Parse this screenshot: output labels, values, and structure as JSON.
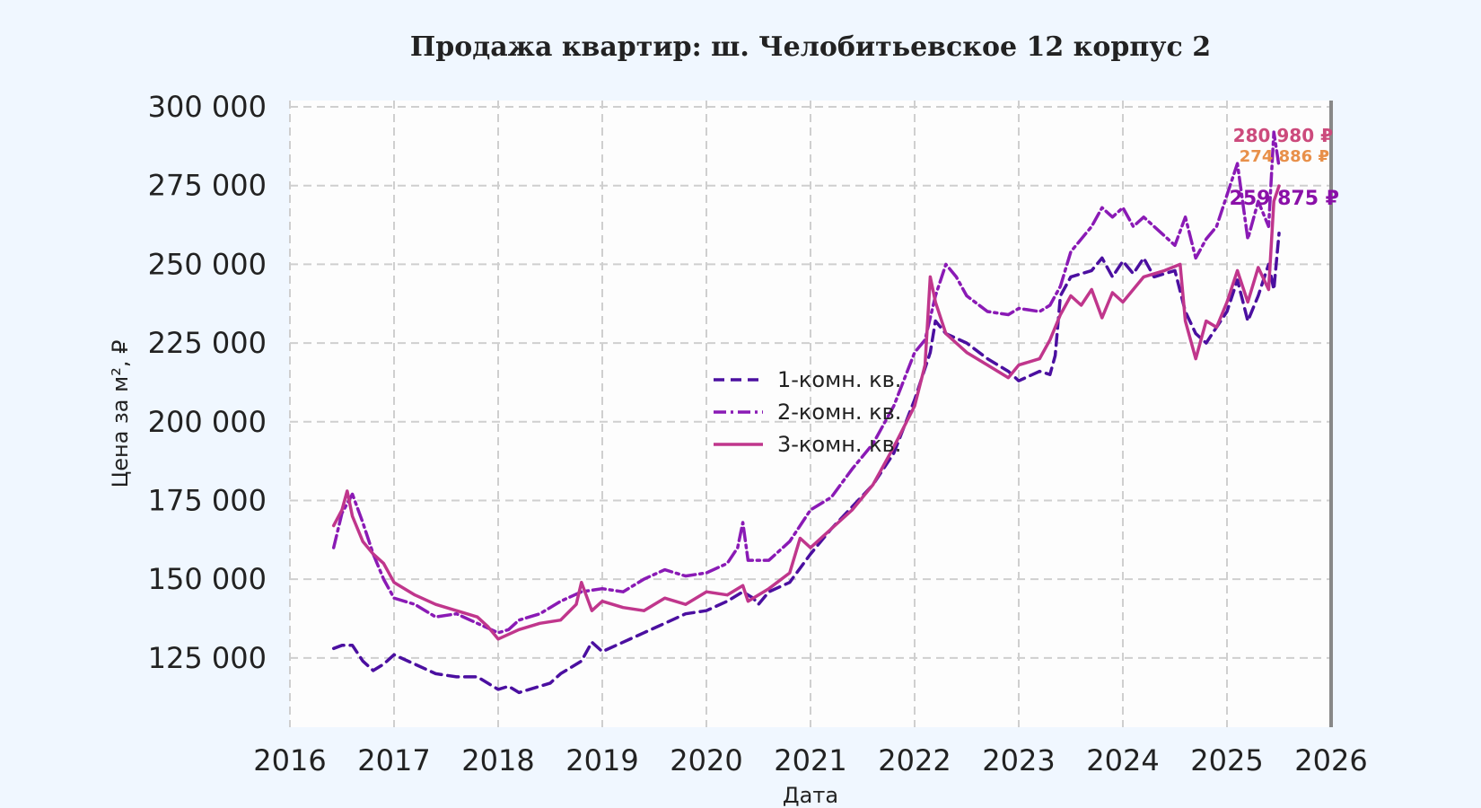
{
  "chart_data": {
    "type": "line",
    "title": "Продажа квартир: ш. Челобитьевское 12 корпус 2",
    "xlabel": "Дата",
    "ylabel": "Цена за м², ₽",
    "xlim": [
      2016.0,
      2026.0
    ],
    "ylim": [
      103000,
      302000
    ],
    "x_ticks": [
      "2016",
      "2017",
      "2018",
      "2019",
      "2020",
      "2021",
      "2022",
      "2023",
      "2024",
      "2025",
      "2026"
    ],
    "y_ticks": [
      "125 000",
      "150 000",
      "175 000",
      "200 000",
      "225 000",
      "250 000",
      "275 000",
      "300 000"
    ],
    "grid": true,
    "legend_position": "center",
    "end_labels": [
      "280 980 ₽",
      "274 886 ₽",
      "259 875 ₽"
    ],
    "series": [
      {
        "name": "1-комн. кв.",
        "color": "#4b0fa0",
        "dash": "dashed",
        "x": [
          2016.42,
          2016.5,
          2016.6,
          2016.7,
          2016.8,
          2016.9,
          2017.0,
          2017.2,
          2017.4,
          2017.6,
          2017.8,
          2017.9,
          2018.0,
          2018.1,
          2018.2,
          2018.4,
          2018.5,
          2018.6,
          2018.8,
          2018.9,
          2019.0,
          2019.2,
          2019.4,
          2019.6,
          2019.8,
          2020.0,
          2020.2,
          2020.35,
          2020.45,
          2020.5,
          2020.6,
          2020.8,
          2021.0,
          2021.2,
          2021.4,
          2021.6,
          2021.8,
          2022.0,
          2022.15,
          2022.2,
          2022.3,
          2022.5,
          2022.7,
          2022.9,
          2023.0,
          2023.2,
          2023.3,
          2023.35,
          2023.4,
          2023.5,
          2023.7,
          2023.8,
          2023.9,
          2024.0,
          2024.1,
          2024.2,
          2024.3,
          2024.5,
          2024.6,
          2024.7,
          2024.8,
          2024.9,
          2025.0,
          2025.1,
          2025.2,
          2025.3,
          2025.4,
          2025.45,
          2025.5
        ],
        "y": [
          128000,
          129000,
          129000,
          124000,
          121000,
          123000,
          126000,
          123000,
          120000,
          119000,
          119000,
          117000,
          115000,
          116000,
          114000,
          116000,
          117000,
          120000,
          124000,
          130000,
          127000,
          130000,
          133000,
          136000,
          139000,
          140000,
          143000,
          146000,
          144000,
          142000,
          146000,
          149000,
          158000,
          166000,
          173000,
          180000,
          190000,
          207000,
          222000,
          232000,
          228000,
          225000,
          220000,
          216000,
          213000,
          216000,
          215000,
          221000,
          240000,
          246000,
          248000,
          252000,
          246000,
          251000,
          247000,
          252000,
          246000,
          248000,
          235000,
          228000,
          225000,
          230000,
          235000,
          245000,
          232000,
          240000,
          250000,
          242000,
          259875
        ]
      },
      {
        "name": "2-комн. кв.",
        "color": "#8a1ab5",
        "dash": "dashdot",
        "x": [
          2016.42,
          2016.5,
          2016.6,
          2016.7,
          2016.8,
          2016.9,
          2017.0,
          2017.2,
          2017.4,
          2017.6,
          2017.8,
          2018.0,
          2018.1,
          2018.2,
          2018.4,
          2018.6,
          2018.8,
          2019.0,
          2019.2,
          2019.4,
          2019.6,
          2019.8,
          2020.0,
          2020.2,
          2020.3,
          2020.35,
          2020.4,
          2020.6,
          2020.8,
          2021.0,
          2021.2,
          2021.4,
          2021.6,
          2021.8,
          2022.0,
          2022.1,
          2022.2,
          2022.3,
          2022.4,
          2022.5,
          2022.7,
          2022.9,
          2023.0,
          2023.2,
          2023.3,
          2023.4,
          2023.5,
          2023.6,
          2023.7,
          2023.8,
          2023.9,
          2024.0,
          2024.1,
          2024.2,
          2024.3,
          2024.5,
          2024.6,
          2024.7,
          2024.8,
          2024.9,
          2025.0,
          2025.1,
          2025.2,
          2025.3,
          2025.4,
          2025.45,
          2025.5
        ],
        "y": [
          160000,
          171000,
          177000,
          168000,
          158000,
          150000,
          144000,
          142000,
          138000,
          139000,
          136000,
          133000,
          134000,
          137000,
          139000,
          143000,
          146000,
          147000,
          146000,
          150000,
          153000,
          151000,
          152000,
          155000,
          160000,
          168000,
          156000,
          156000,
          162000,
          172000,
          176000,
          185000,
          193000,
          205000,
          222000,
          226000,
          240000,
          250000,
          246000,
          240000,
          235000,
          234000,
          236000,
          235000,
          237000,
          243000,
          254000,
          258000,
          262000,
          268000,
          265000,
          268000,
          262000,
          265000,
          262000,
          256000,
          265000,
          252000,
          258000,
          262000,
          272000,
          282000,
          258000,
          270000,
          262000,
          292000,
          280980
        ]
      },
      {
        "name": "3-комн. кв.",
        "color": "#c0368c",
        "dash": "solid",
        "x": [
          2016.42,
          2016.5,
          2016.55,
          2016.6,
          2016.7,
          2016.8,
          2016.9,
          2017.0,
          2017.2,
          2017.4,
          2017.6,
          2017.8,
          2017.9,
          2018.0,
          2018.2,
          2018.4,
          2018.6,
          2018.75,
          2018.8,
          2018.9,
          2019.0,
          2019.2,
          2019.4,
          2019.6,
          2019.8,
          2020.0,
          2020.2,
          2020.35,
          2020.4,
          2020.6,
          2020.8,
          2020.9,
          2021.0,
          2021.2,
          2021.4,
          2021.6,
          2021.8,
          2022.0,
          2022.1,
          2022.15,
          2022.2,
          2022.3,
          2022.5,
          2022.7,
          2022.9,
          2023.0,
          2023.2,
          2023.3,
          2023.4,
          2023.5,
          2023.6,
          2023.7,
          2023.8,
          2023.9,
          2024.0,
          2024.2,
          2024.4,
          2024.55,
          2024.6,
          2024.7,
          2024.8,
          2024.9,
          2025.0,
          2025.1,
          2025.2,
          2025.3,
          2025.4,
          2025.45,
          2025.5
        ],
        "y": [
          167000,
          172000,
          178000,
          170000,
          162000,
          158000,
          155000,
          149000,
          145000,
          142000,
          140000,
          138000,
          135000,
          131000,
          134000,
          136000,
          137000,
          142000,
          149000,
          140000,
          143000,
          141000,
          140000,
          144000,
          142000,
          146000,
          145000,
          148000,
          143000,
          147000,
          152000,
          163000,
          160000,
          166000,
          172000,
          180000,
          192000,
          205000,
          218000,
          246000,
          238000,
          228000,
          222000,
          218000,
          214000,
          218000,
          220000,
          226000,
          234000,
          240000,
          237000,
          242000,
          233000,
          241000,
          238000,
          246000,
          248000,
          250000,
          232000,
          220000,
          232000,
          230000,
          238000,
          248000,
          238000,
          249000,
          242000,
          270000,
          274886
        ]
      }
    ]
  }
}
